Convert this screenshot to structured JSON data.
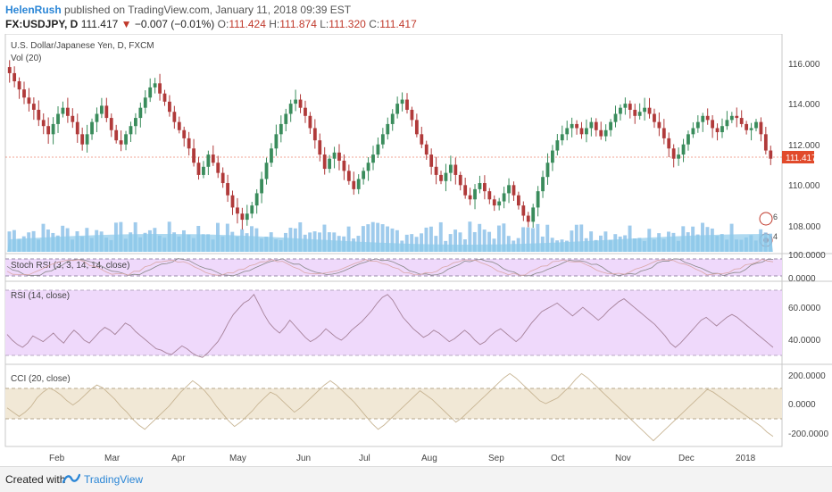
{
  "header": {
    "user": "HelenRush",
    "published": "published on TradingView.com, January 11, 2018 09:39 EST",
    "symbol": "FX:USDJPY, D",
    "last": "111.417",
    "change": "−0.007 (−0.01%)",
    "open_label": "O:",
    "open": "111.424",
    "high_label": "H:",
    "high": "111.874",
    "low_label": "L:",
    "low": "111.320",
    "close_label": "C:",
    "close": "111.417"
  },
  "footer": {
    "created_with": "Created with",
    "brand": "TradingView"
  },
  "colors": {
    "up": "#3a8c5c",
    "down": "#b03a3a",
    "volume": "#7fb9e6",
    "rsi_band": "#efd9fb",
    "cci_band": "#f1e8d6",
    "last_price_tag": "#e14a2b"
  },
  "chart_data": [
    {
      "type": "candlestick",
      "title": "U.S. Dollar/Japanese Yen, D, FXCM",
      "subtitle": "Vol (20)",
      "x": [
        "Feb",
        "Mar",
        "Apr",
        "May",
        "Jun",
        "Jul",
        "Aug",
        "Sep",
        "Oct",
        "Nov",
        "Dec",
        "2018"
      ],
      "y_ticks": [
        "116.000",
        "114.000",
        "112.000",
        "110.000",
        "108.000"
      ],
      "ylim": [
        107,
        117
      ],
      "last_price": "111.417",
      "close_series": [
        115.6,
        115.2,
        114.8,
        114.4,
        114.1,
        113.8,
        113.3,
        113.0,
        112.6,
        113.1,
        113.6,
        113.9,
        113.5,
        113.2,
        112.6,
        112.1,
        112.6,
        113.2,
        113.6,
        114.0,
        113.4,
        112.8,
        112.3,
        112.1,
        112.6,
        113.0,
        113.4,
        113.9,
        114.4,
        114.9,
        115.1,
        114.6,
        114.2,
        113.7,
        113.2,
        112.8,
        112.4,
        111.9,
        111.2,
        110.6,
        111.0,
        111.6,
        111.2,
        110.7,
        110.2,
        109.6,
        109.0,
        108.7,
        108.4,
        108.7,
        109.1,
        109.7,
        110.4,
        111.2,
        111.9,
        112.6,
        113.1,
        113.6,
        114.1,
        114.3,
        113.9,
        113.5,
        112.9,
        112.3,
        111.6,
        110.9,
        111.4,
        111.7,
        111.3,
        110.8,
        110.3,
        109.9,
        110.4,
        110.8,
        111.2,
        111.6,
        112.1,
        112.6,
        113.1,
        113.6,
        114.1,
        114.3,
        113.8,
        113.3,
        112.6,
        112.1,
        111.6,
        111.0,
        110.6,
        110.3,
        110.7,
        111.1,
        110.6,
        110.1,
        109.6,
        109.4,
        109.9,
        110.2,
        109.8,
        109.4,
        109.1,
        109.3,
        109.7,
        110.1,
        109.6,
        109.1,
        108.6,
        108.3,
        109.0,
        109.8,
        110.5,
        111.2,
        111.8,
        112.3,
        112.6,
        112.9,
        113.1,
        112.9,
        112.6,
        112.9,
        113.2,
        112.8,
        112.5,
        112.8,
        113.2,
        113.6,
        113.9,
        114.1,
        113.8,
        113.5,
        113.7,
        113.9,
        113.6,
        113.2,
        112.9,
        112.4,
        111.9,
        111.4,
        111.6,
        112.1,
        112.6,
        112.9,
        113.2,
        113.5,
        113.3,
        112.9,
        112.7,
        113.0,
        113.3,
        113.5,
        113.4,
        113.1,
        112.8,
        112.9,
        113.2,
        112.6,
        111.8,
        111.4
      ]
    },
    {
      "type": "line",
      "title": "Stoch RSI (3, 3, 14, 14, close)",
      "y_ticks": [
        "100.0000",
        "0.0000"
      ],
      "ylim": [
        0,
        100
      ]
    },
    {
      "type": "line",
      "title": "RSI (14, close)",
      "y_ticks": [
        "60.0000",
        "40.0000"
      ],
      "ylim": [
        25,
        75
      ],
      "values": [
        44,
        40,
        37,
        35,
        38,
        43,
        41,
        39,
        42,
        45,
        41,
        38,
        43,
        47,
        44,
        40,
        38,
        42,
        46,
        49,
        47,
        44,
        48,
        52,
        50,
        46,
        43,
        40,
        37,
        34,
        33,
        31,
        30,
        33,
        36,
        34,
        31,
        29,
        28,
        31,
        35,
        39,
        45,
        52,
        58,
        62,
        66,
        68,
        72,
        65,
        58,
        52,
        48,
        45,
        49,
        54,
        50,
        46,
        42,
        39,
        41,
        44,
        48,
        45,
        42,
        40,
        43,
        47,
        50,
        53,
        57,
        61,
        66,
        70,
        72,
        68,
        62,
        56,
        52,
        48,
        45,
        42,
        44,
        47,
        45,
        42,
        39,
        41,
        44,
        47,
        44,
        40,
        37,
        39,
        43,
        46,
        48,
        45,
        42,
        39,
        42,
        47,
        52,
        56,
        60,
        62,
        64,
        66,
        63,
        60,
        57,
        60,
        63,
        60,
        57,
        54,
        57,
        61,
        64,
        67,
        69,
        66,
        63,
        60,
        57,
        54,
        51,
        47,
        43,
        38,
        35,
        38,
        42,
        46,
        50,
        54,
        56,
        53,
        50,
        53,
        56,
        58,
        56,
        53,
        50,
        47,
        44,
        41,
        38,
        35
      ]
    },
    {
      "type": "line",
      "title": "CCI (20, close)",
      "y_ticks": [
        "200.0000",
        "0.0000",
        "-200.0000"
      ],
      "ylim": [
        -250,
        250
      ],
      "values": [
        -30,
        -60,
        -90,
        -60,
        -20,
        40,
        80,
        110,
        90,
        60,
        20,
        -10,
        20,
        60,
        100,
        130,
        110,
        70,
        30,
        -20,
        -60,
        -110,
        -150,
        -180,
        -140,
        -100,
        -60,
        -20,
        30,
        80,
        120,
        160,
        130,
        90,
        40,
        -20,
        -70,
        -120,
        -160,
        -130,
        -90,
        -50,
        0,
        40,
        80,
        60,
        20,
        -20,
        -60,
        -30,
        10,
        50,
        90,
        130,
        160,
        130,
        90,
        50,
        10,
        -40,
        -90,
        -140,
        -180,
        -150,
        -110,
        -70,
        -30,
        10,
        50,
        90,
        60,
        30,
        -10,
        -50,
        -90,
        -130,
        -100,
        -60,
        -20,
        20,
        60,
        100,
        140,
        180,
        210,
        180,
        140,
        100,
        60,
        20,
        0,
        20,
        40,
        80,
        120,
        170,
        210,
        180,
        140,
        100,
        60,
        20,
        -20,
        -60,
        -100,
        -140,
        -180,
        -220,
        -260,
        -220,
        -180,
        -140,
        -100,
        -60,
        -20,
        20,
        60,
        100,
        80,
        50,
        20,
        -10,
        -40,
        -70,
        -100,
        -130,
        -160,
        -200,
        -230
      ]
    }
  ]
}
